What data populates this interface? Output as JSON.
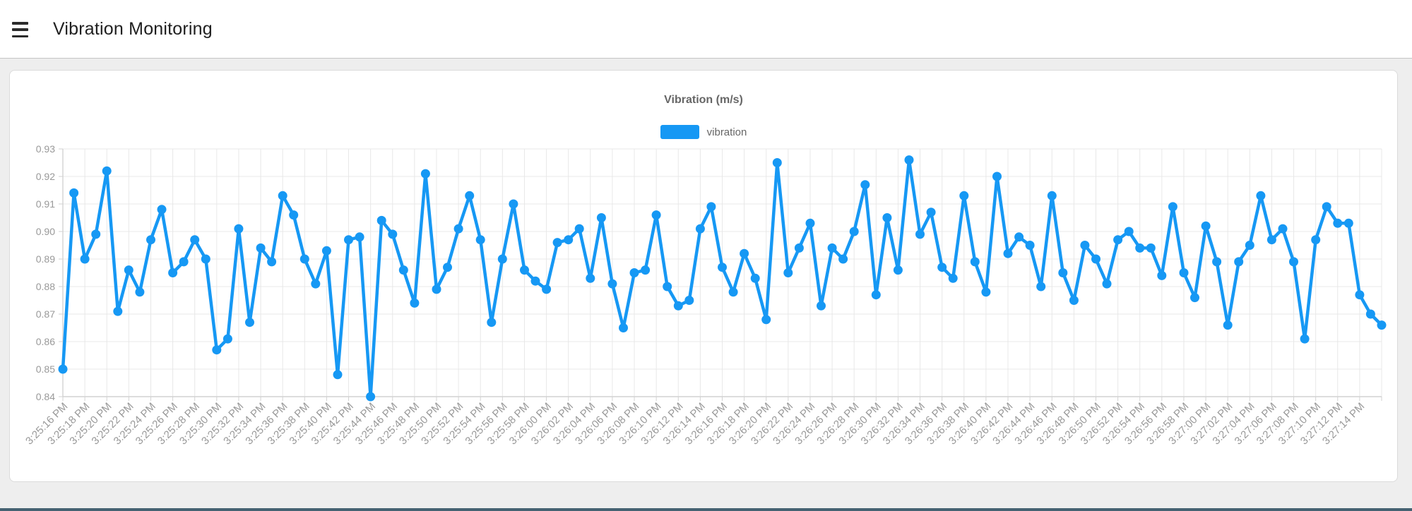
{
  "header": {
    "title": "Vibration Monitoring"
  },
  "chart": {
    "title": "Vibration (m/s)",
    "legend_label": "vibration"
  },
  "colors": {
    "line": "#1698F4",
    "point": "#1698F4",
    "grid": "#E8E8E8",
    "axis": "#D2D2D2",
    "tick_text": "#999999",
    "title_text": "#666666",
    "page_bg": "#EEEEEE",
    "card_bg": "#FFFFFF",
    "footer_bar": "#456272"
  },
  "chart_data": {
    "type": "line",
    "title": "Vibration (m/s)",
    "series": [
      {
        "name": "vibration",
        "color": "#1698F4",
        "values": [
          0.85,
          0.914,
          0.89,
          0.899,
          0.922,
          0.871,
          0.886,
          0.878,
          0.897,
          0.908,
          0.885,
          0.889,
          0.897,
          0.89,
          0.857,
          0.861,
          0.901,
          0.867,
          0.894,
          0.889,
          0.913,
          0.906,
          0.89,
          0.881,
          0.893,
          0.848,
          0.897,
          0.898,
          0.84,
          0.904,
          0.899,
          0.886,
          0.874,
          0.921,
          0.879,
          0.887,
          0.901,
          0.913,
          0.897,
          0.867,
          0.89,
          0.91,
          0.886,
          0.882,
          0.879,
          0.896,
          0.897,
          0.901,
          0.883,
          0.905,
          0.881,
          0.865,
          0.885,
          0.886,
          0.906,
          0.88,
          0.873,
          0.875,
          0.901,
          0.909,
          0.887,
          0.878,
          0.892,
          0.883,
          0.868,
          0.925,
          0.885,
          0.894,
          0.903,
          0.873,
          0.894,
          0.89,
          0.9,
          0.917,
          0.877,
          0.905,
          0.886,
          0.926,
          0.899,
          0.907,
          0.887,
          0.883,
          0.913,
          0.889,
          0.878,
          0.92,
          0.892,
          0.898,
          0.895,
          0.88,
          0.913,
          0.885,
          0.875,
          0.895,
          0.89,
          0.881,
          0.897,
          0.9,
          0.894,
          0.894,
          0.884,
          0.909,
          0.885,
          0.876,
          0.902,
          0.889,
          0.866,
          0.889,
          0.895,
          0.913,
          0.897,
          0.901,
          0.889,
          0.861,
          0.897,
          0.909,
          0.903,
          0.903,
          0.877,
          0.87,
          0.866
        ]
      }
    ],
    "x_tick_labels": [
      "3:25:16 PM",
      "3:25:18 PM",
      "3:25:20 PM",
      "3:25:22 PM",
      "3:25:24 PM",
      "3:25:26 PM",
      "3:25:28 PM",
      "3:25:30 PM",
      "3:25:32 PM",
      "3:25:34 PM",
      "3:25:36 PM",
      "3:25:38 PM",
      "3:25:40 PM",
      "3:25:42 PM",
      "3:25:44 PM",
      "3:25:46 PM",
      "3:25:48 PM",
      "3:25:50 PM",
      "3:25:52 PM",
      "3:25:54 PM",
      "3:25:56 PM",
      "3:25:58 PM",
      "3:26:00 PM",
      "3:26:02 PM",
      "3:26:04 PM",
      "3:26:06 PM",
      "3:26:08 PM",
      "3:26:10 PM",
      "3:26:12 PM",
      "3:26:14 PM",
      "3:26:16 PM",
      "3:26:18 PM",
      "3:26:20 PM",
      "3:26:22 PM",
      "3:26:24 PM",
      "3:26:26 PM",
      "3:26:28 PM",
      "3:26:30 PM",
      "3:26:32 PM",
      "3:26:34 PM",
      "3:26:36 PM",
      "3:26:38 PM",
      "3:26:40 PM",
      "3:26:42 PM",
      "3:26:44 PM",
      "3:26:46 PM",
      "3:26:48 PM",
      "3:26:50 PM",
      "3:26:52 PM",
      "3:26:54 PM",
      "3:26:56 PM",
      "3:26:58 PM",
      "3:27:00 PM",
      "3:27:02 PM",
      "3:27:04 PM",
      "3:27:06 PM",
      "3:27:08 PM",
      "3:27:10 PM",
      "3:27:12 PM",
      "3:27:14 PM"
    ],
    "points_per_tick": 2,
    "y_tick_labels": [
      "0.93",
      "0.92",
      "0.91",
      "0.90",
      "0.89",
      "0.88",
      "0.87",
      "0.86",
      "0.85",
      "0.84"
    ],
    "ylim": [
      0.84,
      0.93
    ],
    "y_step": 0.01,
    "grid": true,
    "legend_position": "top"
  }
}
